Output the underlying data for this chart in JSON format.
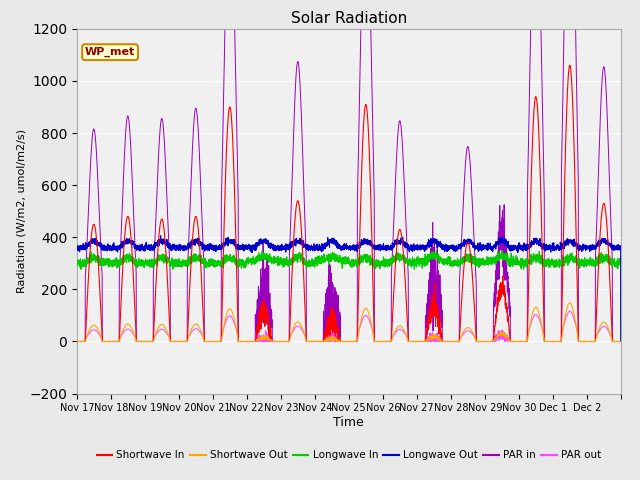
{
  "title": "Solar Radiation",
  "xlabel": "Time",
  "ylabel": "Radiation (W/m2, umol/m2/s)",
  "ylim": [
    -200,
    1200
  ],
  "yticks": [
    -200,
    0,
    200,
    400,
    600,
    800,
    1000,
    1200
  ],
  "background_color": "#e8e8e8",
  "plot_bg_color": "#f0f0f0",
  "legend_labels": [
    "Shortwave In",
    "Shortwave Out",
    "Longwave In",
    "Longwave Out",
    "PAR in",
    "PAR out"
  ],
  "legend_colors": [
    "#ff0000",
    "#ffa500",
    "#00cc00",
    "#0000cc",
    "#9900bb",
    "#ff44ff"
  ],
  "station_label": "WP_met",
  "xtick_labels": [
    "Nov 17",
    "Nov 18",
    "Nov 19",
    "Nov 20",
    "Nov 21",
    "Nov 22",
    "Nov 23",
    "Nov 24",
    "Nov 25",
    "Nov 26",
    "Nov 27",
    "Nov 28",
    "Nov 29",
    "Nov 30",
    "Dec 1",
    "Dec 2"
  ],
  "n_days": 16,
  "points_per_day": 288,
  "sw_peaks": [
    450,
    480,
    470,
    480,
    900,
    110,
    540,
    80,
    910,
    430,
    130,
    380,
    210,
    940,
    1060,
    530
  ],
  "par_in_peaks": [
    820,
    870,
    860,
    900,
    1800,
    220,
    1080,
    160,
    1820,
    860,
    260,
    760,
    420,
    1880,
    2120,
    1060
  ],
  "cloud": [
    0.1,
    0.1,
    0.1,
    0.1,
    0.05,
    0.9,
    0.1,
    0.95,
    0.05,
    0.3,
    0.95,
    0.3,
    0.7,
    0.05,
    0.05,
    0.1
  ],
  "lw_in_base": 300,
  "lw_out_base": 360
}
